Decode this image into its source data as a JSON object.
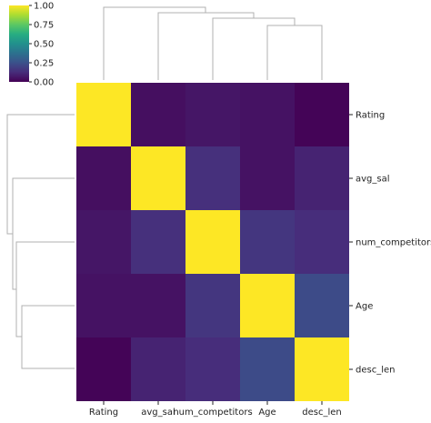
{
  "chart_data": {
    "type": "heatmap",
    "rows": [
      "Rating",
      "avg_sal",
      "num_competitors",
      "Age",
      "desc_len"
    ],
    "columns": [
      "Rating",
      "avg_sal",
      "num_competitors",
      "Age",
      "desc_len"
    ],
    "values": [
      [
        1.0,
        0.04,
        0.06,
        0.05,
        0.01
      ],
      [
        0.04,
        1.0,
        0.14,
        0.05,
        0.1
      ],
      [
        0.06,
        0.14,
        1.0,
        0.16,
        0.13
      ],
      [
        0.05,
        0.05,
        0.16,
        1.0,
        0.23
      ],
      [
        0.01,
        0.1,
        0.13,
        0.23,
        1.0
      ]
    ],
    "vmin": 0.0,
    "vmax": 1.0,
    "colormap": "viridis",
    "colorbar_ticks": [
      "0.00",
      "0.25",
      "0.50",
      "0.75",
      "1.00"
    ],
    "dendrograms": "row and column (clustermap)"
  },
  "colors": {
    "dendrogram_line": "#b0b0b0",
    "axis_text": "#222222"
  }
}
